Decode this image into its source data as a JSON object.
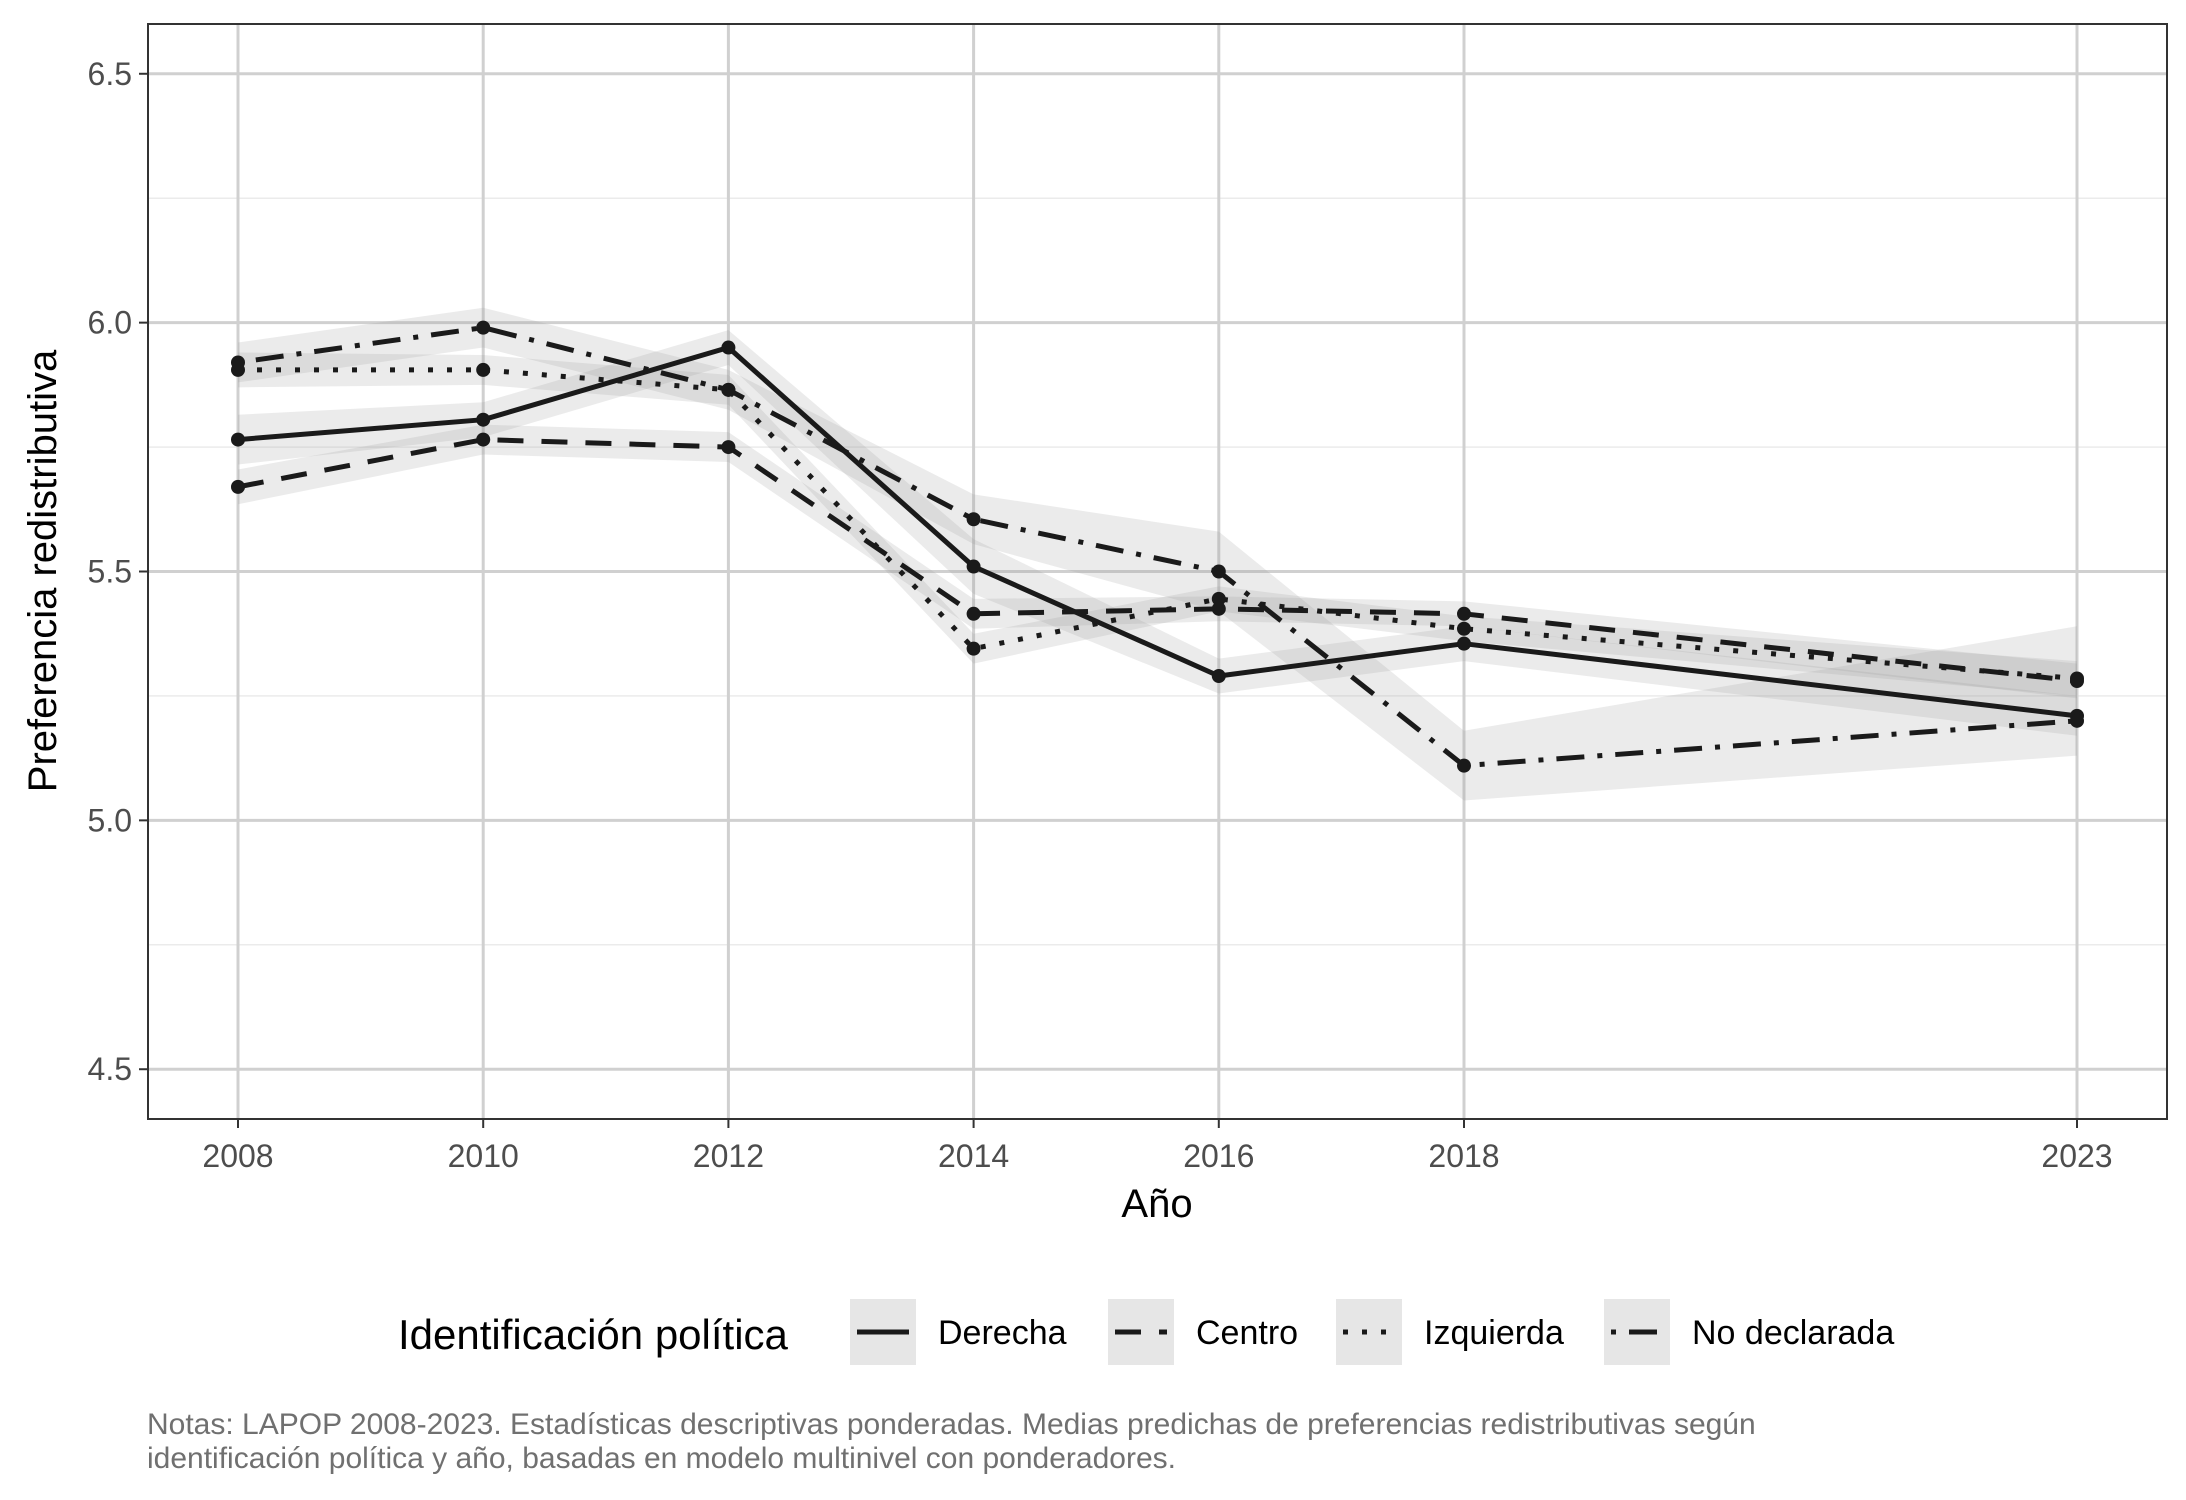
{
  "chart_data": {
    "type": "line",
    "xlabel": "Año",
    "ylabel": "Preferencia redistributiva",
    "x": [
      2008,
      2010,
      2012,
      2014,
      2016,
      2018,
      2023
    ],
    "x_tick_labels": [
      "2008",
      "2010",
      "2012",
      "2014",
      "2016",
      "2018",
      "2023"
    ],
    "ylim": [
      4.4,
      6.6
    ],
    "y_ticks": [
      4.5,
      5.0,
      5.5,
      6.0,
      6.5
    ],
    "y_tick_labels": [
      "4.5",
      "5.0",
      "5.5",
      "6.0",
      "6.5"
    ],
    "grid": true,
    "legend_title": "Identificación política",
    "legend_position": "bottom",
    "series": [
      {
        "name": "Derecha",
        "linestyle": "solid",
        "values": [
          5.765,
          5.805,
          5.95,
          5.51,
          5.29,
          5.355,
          5.21
        ],
        "ci_low": [
          5.715,
          5.77,
          5.915,
          5.455,
          5.255,
          5.32,
          5.17
        ],
        "ci_high": [
          5.815,
          5.84,
          5.985,
          5.565,
          5.325,
          5.39,
          5.25
        ]
      },
      {
        "name": "Centro",
        "linestyle": "dashed",
        "values": [
          5.67,
          5.765,
          5.75,
          5.415,
          5.425,
          5.415,
          5.28
        ],
        "ci_low": [
          5.635,
          5.735,
          5.72,
          5.385,
          5.4,
          5.39,
          5.245
        ],
        "ci_high": [
          5.705,
          5.795,
          5.78,
          5.445,
          5.45,
          5.44,
          5.315
        ]
      },
      {
        "name": "Izquierda",
        "linestyle": "dotted",
        "values": [
          5.905,
          5.905,
          5.865,
          5.345,
          5.445,
          5.385,
          5.285
        ],
        "ci_low": [
          5.87,
          5.875,
          5.835,
          5.315,
          5.42,
          5.36,
          5.25
        ],
        "ci_high": [
          5.94,
          5.935,
          5.895,
          5.375,
          5.47,
          5.41,
          5.32
        ]
      },
      {
        "name": "No declarada",
        "linestyle": "dotdash",
        "values": [
          5.92,
          5.99,
          5.865,
          5.605,
          5.5,
          5.11,
          5.2
        ],
        "ci_low": [
          5.88,
          5.95,
          5.825,
          5.555,
          5.42,
          5.04,
          5.13
        ],
        "ci_high": [
          5.96,
          6.03,
          5.905,
          5.655,
          5.58,
          5.18,
          5.39
        ]
      }
    ]
  },
  "notes": {
    "line1": "Notas: LAPOP 2008-2023. Estadísticas descriptivas ponderadas. Medias predichas de preferencias redistributivas según",
    "line2": "identificación política y año, basadas en modelo multinivel con ponderadores."
  }
}
